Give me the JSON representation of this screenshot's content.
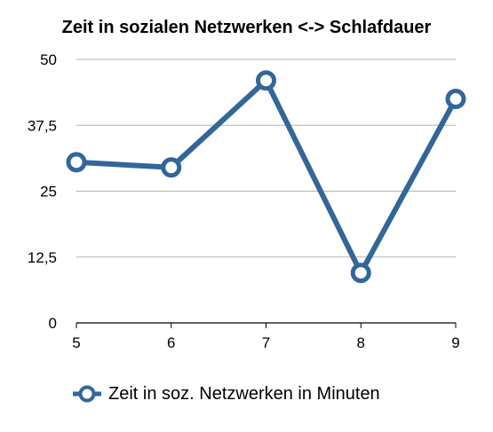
{
  "chart_data": {
    "type": "line",
    "title": "Zeit in sozialen Netzwerken <-> Schlafdauer",
    "xlabel": "",
    "ylabel": "",
    "categories": [
      "5",
      "6",
      "7",
      "8",
      "9"
    ],
    "series": [
      {
        "name": "Zeit in soz. Netzwerken in Minuten",
        "values": [
          30.5,
          29.5,
          46,
          9.5,
          42.5
        ],
        "color": "#336699"
      }
    ],
    "y_ticks": [
      "0",
      "12,5",
      "25",
      "37,5",
      "50"
    ],
    "y_tick_values": [
      0,
      12.5,
      25,
      37.5,
      50
    ],
    "ylim": [
      0,
      50
    ],
    "grid": true,
    "legend_position": "bottom"
  }
}
